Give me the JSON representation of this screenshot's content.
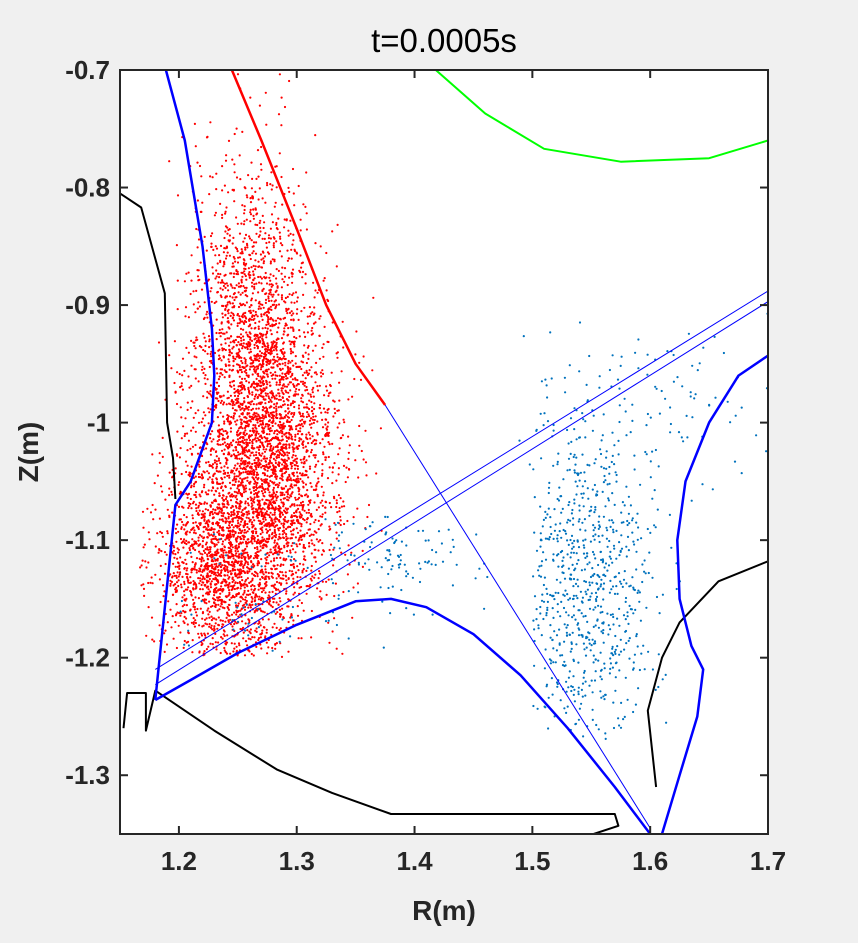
{
  "chart_data": {
    "type": "scatter",
    "title": "t=0.0005s",
    "xlabel": "R(m)",
    "ylabel": "Z(m)",
    "xlim": [
      1.15,
      1.7
    ],
    "ylim": [
      -1.35,
      -0.7
    ],
    "xticks": [
      1.2,
      1.3,
      1.4,
      1.5,
      1.6,
      1.7
    ],
    "xtick_labels": [
      "1.2",
      "1.3",
      "1.4",
      "1.5",
      "1.6",
      "1.7"
    ],
    "yticks": [
      -0.7,
      -0.8,
      -0.9,
      -1.0,
      -1.1,
      -1.2,
      -1.3
    ],
    "ytick_labels": [
      "-0.7",
      "-0.8",
      "-0.9",
      "-1",
      "-1.1",
      "-1.2",
      "-1.3"
    ],
    "grid": false,
    "legend": "none",
    "colors": {
      "background": "#f0f0f0",
      "axes_face": "#ffffff",
      "red_particles": "#ff0000",
      "blue_particles": "#0072bd",
      "separatrix": "#0000ff",
      "wall": "#000000",
      "green_contour": "#00ff00"
    },
    "lines": [
      {
        "name": "wall-upper-left",
        "color": "#000000",
        "width": 2,
        "x": [
          1.15,
          1.168,
          1.188,
          1.19,
          1.195,
          1.197
        ],
        "y": [
          -0.805,
          -0.817,
          -0.89,
          -1.0,
          -1.03,
          -1.065
        ]
      },
      {
        "name": "wall-lower",
        "color": "#000000",
        "width": 2,
        "x": [
          1.153,
          1.156,
          1.172,
          1.172,
          1.18,
          1.23,
          1.283,
          1.33,
          1.38,
          1.57,
          1.573,
          1.552
        ],
        "y": [
          -1.26,
          -1.23,
          -1.23,
          -1.262,
          -1.228,
          -1.262,
          -1.295,
          -1.315,
          -1.333,
          -1.333,
          -1.343,
          -1.35
        ]
      },
      {
        "name": "wall-right",
        "color": "#000000",
        "width": 2,
        "x": [
          1.7,
          1.658,
          1.625,
          1.61,
          1.598,
          1.605
        ],
        "y": [
          -1.118,
          -1.135,
          -1.17,
          -1.2,
          -1.245,
          -1.31
        ]
      },
      {
        "name": "green-contour",
        "color": "#00ff00",
        "width": 2,
        "x": [
          1.418,
          1.46,
          1.51,
          1.575,
          1.65,
          1.7
        ],
        "y": [
          -0.7,
          -0.737,
          -0.767,
          -0.778,
          -0.775,
          -0.76
        ]
      },
      {
        "name": "separatrix-left",
        "color": "#0000ff",
        "width": 2.5,
        "x": [
          1.189,
          1.205,
          1.22,
          1.228,
          1.23,
          1.228,
          1.21,
          1.197,
          1.18
        ],
        "y": [
          -0.7,
          -0.76,
          -0.85,
          -0.92,
          -0.96,
          -1.0,
          -1.05,
          -1.07,
          -1.236
        ]
      },
      {
        "name": "separatrix-lower",
        "color": "#0000ff",
        "width": 2.5,
        "x": [
          1.18,
          1.21,
          1.25,
          1.3,
          1.35,
          1.38,
          1.41,
          1.45,
          1.49,
          1.53,
          1.57,
          1.6
        ],
        "y": [
          -1.236,
          -1.219,
          -1.196,
          -1.172,
          -1.152,
          -1.15,
          -1.157,
          -1.18,
          -1.215,
          -1.26,
          -1.31,
          -1.35
        ]
      },
      {
        "name": "separatrix-right",
        "color": "#0000ff",
        "width": 2.5,
        "x": [
          1.7,
          1.675,
          1.65,
          1.63,
          1.623,
          1.625,
          1.635,
          1.645,
          1.64,
          1.625,
          1.61
        ],
        "y": [
          -0.943,
          -0.96,
          -1.0,
          -1.05,
          -1.1,
          -1.15,
          -1.19,
          -1.21,
          -1.25,
          -1.3,
          -1.35
        ]
      },
      {
        "name": "red-boundary",
        "color": "#ff0000",
        "width": 2.5,
        "x": [
          1.245,
          1.27,
          1.3,
          1.325,
          1.35,
          1.375
        ],
        "y": [
          -0.7,
          -0.76,
          -0.835,
          -0.9,
          -0.95,
          -0.985
        ]
      },
      {
        "name": "thin-line-1",
        "color": "#0000ff",
        "width": 1,
        "x": [
          1.375,
          1.6
        ],
        "y": [
          -0.985,
          -1.345
        ]
      },
      {
        "name": "thin-line-2",
        "color": "#0000ff",
        "width": 1,
        "x": [
          1.18,
          1.7
        ],
        "y": [
          -1.21,
          -0.888
        ]
      },
      {
        "name": "thin-line-3",
        "color": "#0000ff",
        "width": 1,
        "x": [
          1.18,
          1.7
        ],
        "y": [
          -1.223,
          -0.897
        ]
      }
    ],
    "scatter_clusters": [
      {
        "name": "red-particles",
        "color": "#ff0000",
        "count": 5500,
        "region": {
          "x": [
            1.165,
            1.375
          ],
          "y": [
            -1.2,
            -0.7
          ]
        },
        "centers": [
          [
            1.28,
            -1.03
          ],
          [
            1.235,
            -1.12
          ],
          [
            1.26,
            -0.93
          ]
        ],
        "spread": [
          [
            0.03,
            0.07
          ],
          [
            0.028,
            0.045
          ],
          [
            0.025,
            0.08
          ]
        ],
        "weights": [
          0.45,
          0.3,
          0.25
        ]
      },
      {
        "name": "blue-particles-right",
        "color": "#0072bd",
        "count": 750,
        "region": {
          "x": [
            1.5,
            1.64
          ],
          "y": [
            -1.27,
            -0.96
          ]
        },
        "centers": [
          [
            1.545,
            -1.13
          ]
        ],
        "spread": [
          [
            0.03,
            0.075
          ]
        ],
        "weights": [
          1.0
        ]
      },
      {
        "name": "blue-particles-left",
        "color": "#0072bd",
        "count": 160,
        "region": {
          "x": [
            1.18,
            1.48
          ],
          "y": [
            -1.2,
            -1.08
          ]
        },
        "centers": [
          [
            1.38,
            -1.11
          ],
          [
            1.26,
            -1.16
          ]
        ],
        "spread": [
          [
            0.04,
            0.02
          ],
          [
            0.05,
            0.03
          ]
        ],
        "weights": [
          0.7,
          0.3
        ]
      },
      {
        "name": "blue-particles-strip",
        "color": "#0072bd",
        "count": 90,
        "region": {
          "x": [
            1.48,
            1.7
          ],
          "y": [
            -1.08,
            -0.9
          ]
        },
        "centers": [
          [
            1.6,
            -0.98
          ]
        ],
        "spread": [
          [
            0.06,
            0.04
          ]
        ],
        "weights": [
          1.0
        ]
      }
    ]
  }
}
